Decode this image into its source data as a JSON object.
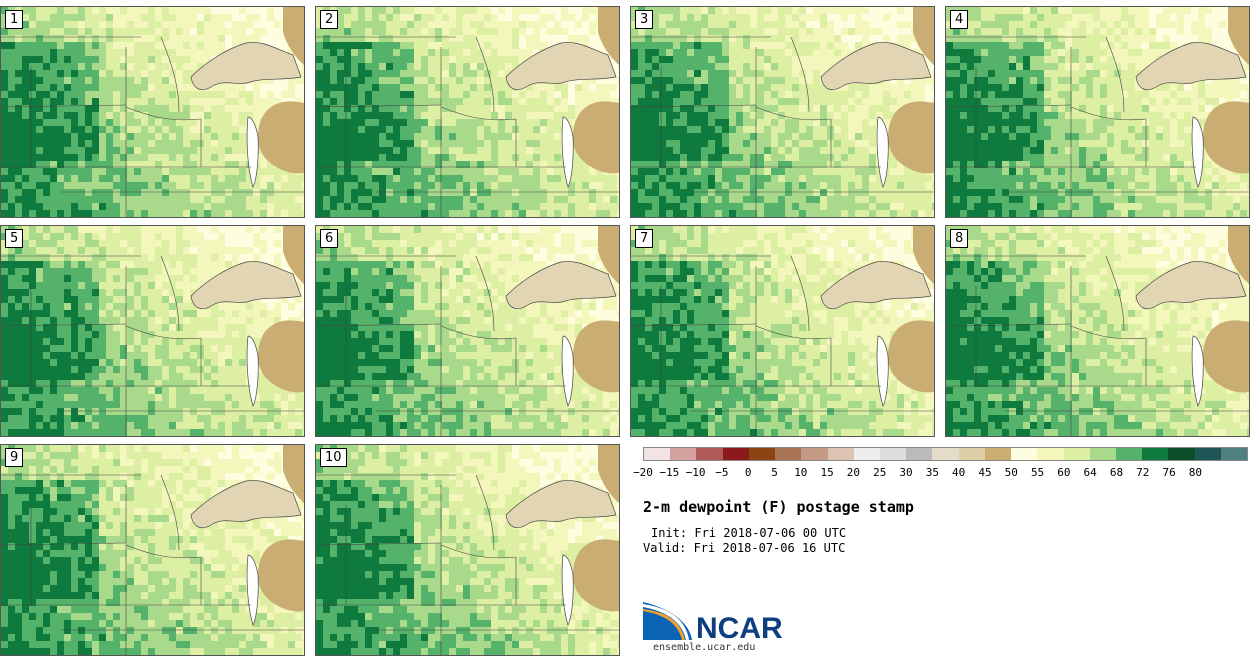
{
  "panels": [
    {
      "label": "1"
    },
    {
      "label": "2"
    },
    {
      "label": "3"
    },
    {
      "label": "4"
    },
    {
      "label": "5"
    },
    {
      "label": "6"
    },
    {
      "label": "7"
    },
    {
      "label": "8"
    },
    {
      "label": "9"
    },
    {
      "label": "10"
    }
  ],
  "colorbar": {
    "colors": [
      "#f2e4e4",
      "#d4a0a0",
      "#b05a5a",
      "#8c1a1a",
      "#8b4513",
      "#a97455",
      "#c49a84",
      "#dcc3b2",
      "#eeeeee",
      "#dddddd",
      "#bbbbbb",
      "#e2dcc9",
      "#dfcfa6",
      "#c9ad72",
      "#fffde0",
      "#f4f7bc",
      "#dcefa3",
      "#a9d98b",
      "#55b26b",
      "#0f7a3e",
      "#0b4f29",
      "#1e5656",
      "#4f8080"
    ],
    "ticks": [
      "−20",
      "−15",
      "−10",
      "−5",
      "0",
      "5",
      "10",
      "15",
      "20",
      "25",
      "30",
      "35",
      "40",
      "45",
      "50",
      "55",
      "60",
      "64",
      "68",
      "72",
      "76",
      "80"
    ]
  },
  "title": "2-m dewpoint (F) postage stamp",
  "init": "Init: Fri 2018-07-06 00 UTC",
  "valid": "Valid: Fri 2018-07-06 16 UTC",
  "logo_text": "NCAR",
  "site": "ensemble.ucar.edu"
}
